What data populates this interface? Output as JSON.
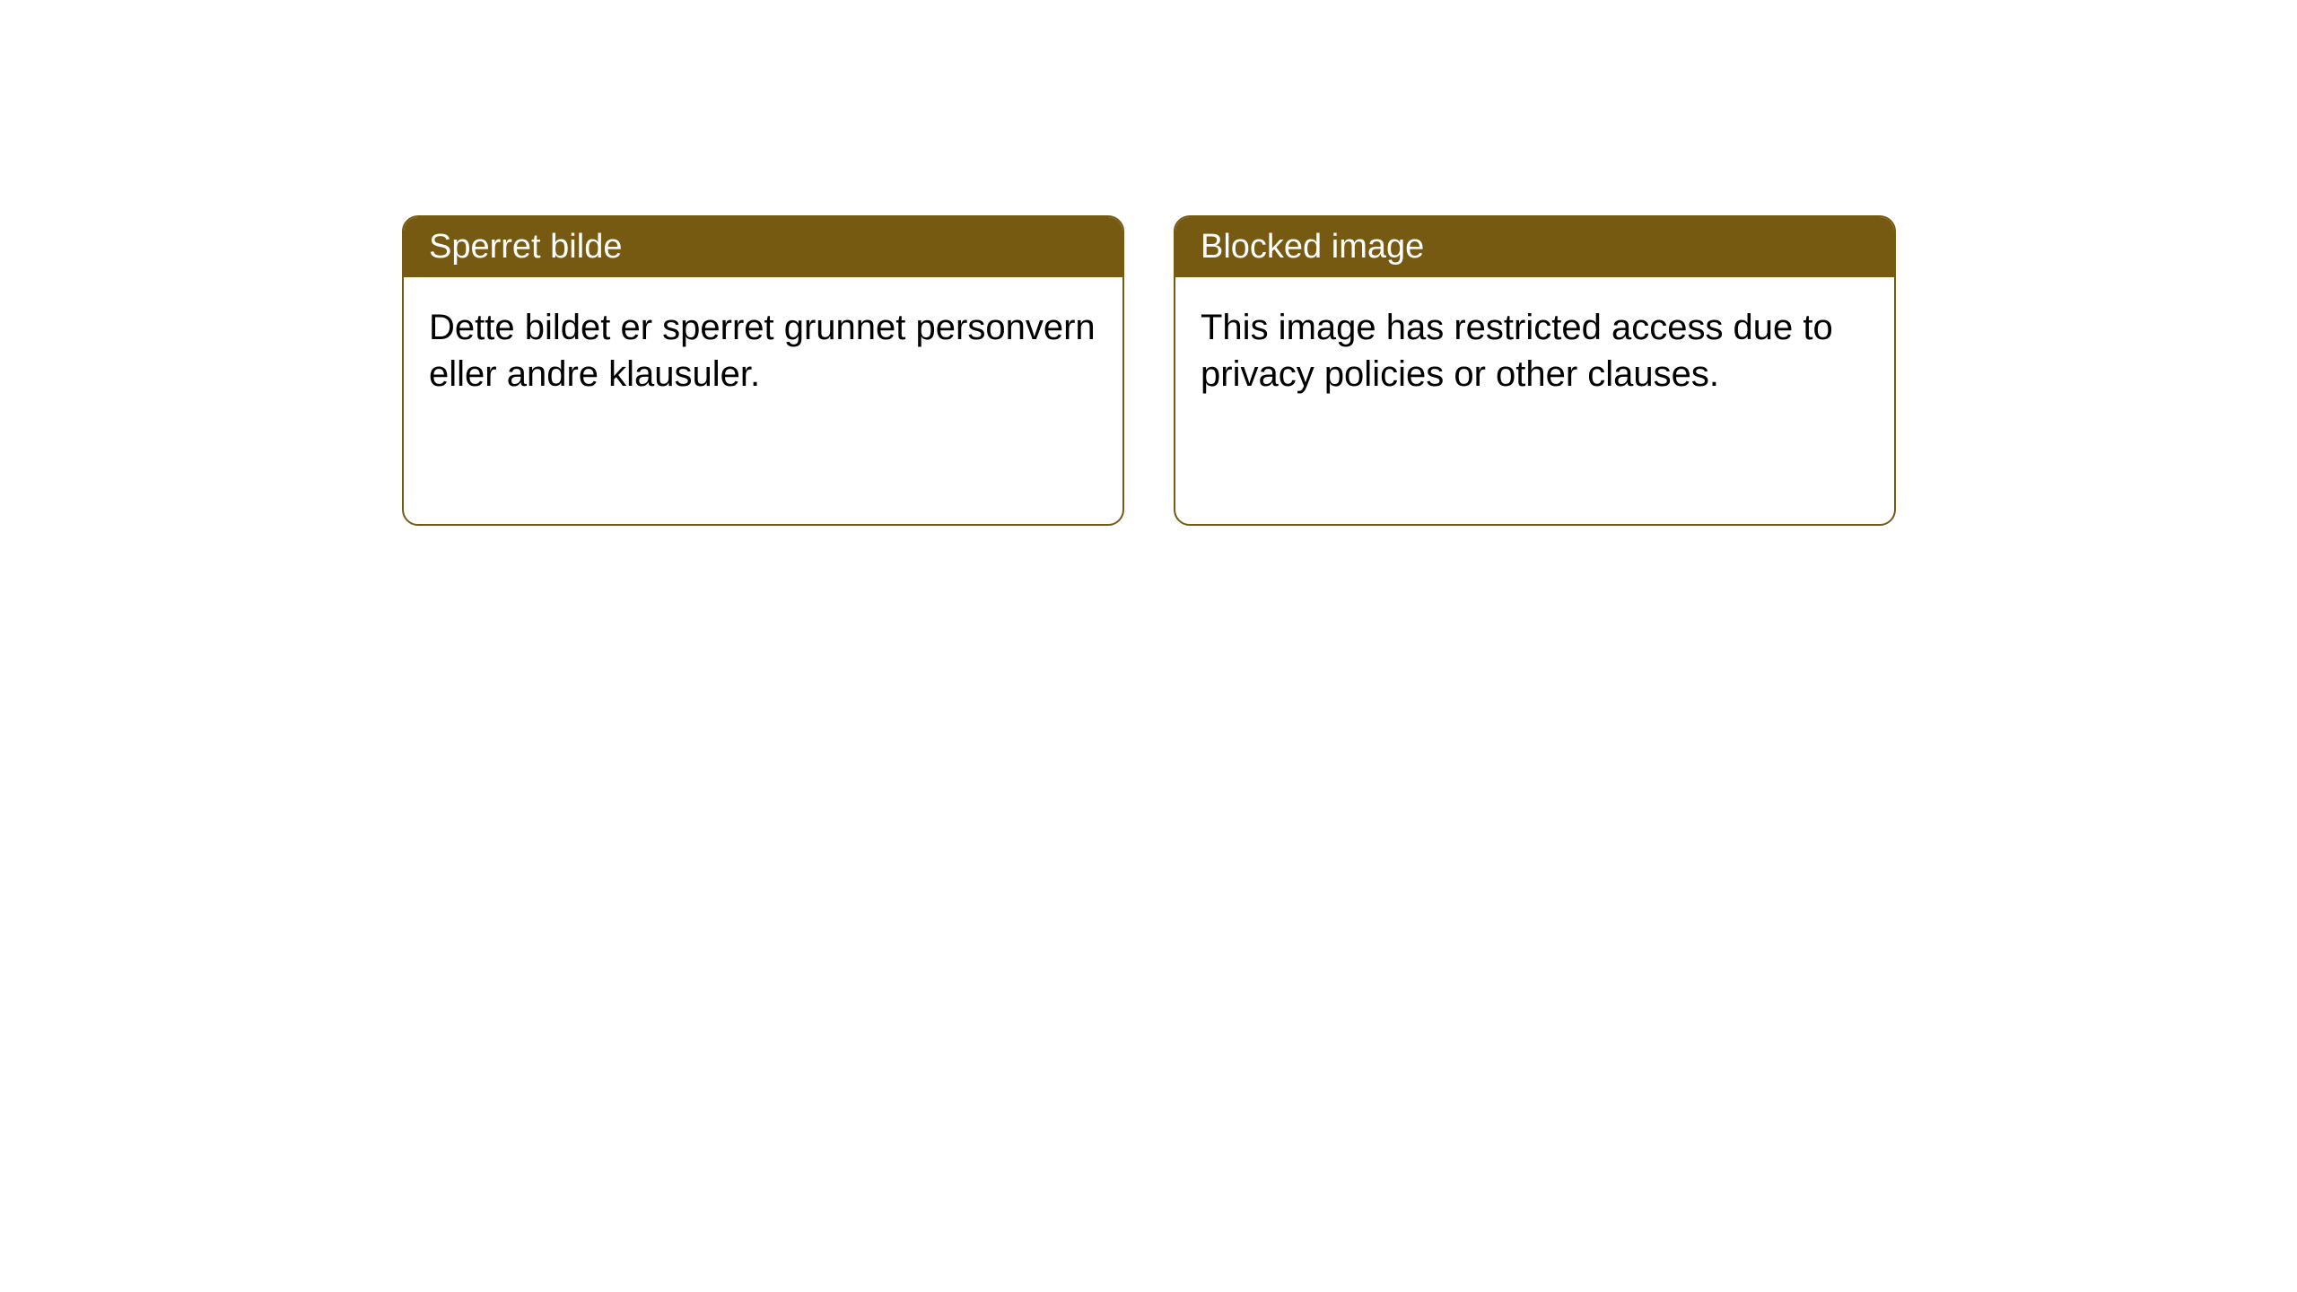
{
  "layout": {
    "background_color": "#ffffff",
    "card_border_color": "#775a12",
    "card_border_radius": 18,
    "header_bg_color": "#775a12",
    "header_text_color": "#ffffff",
    "body_text_color": "#000000",
    "header_fontsize": 38,
    "body_fontsize": 40
  },
  "cards": [
    {
      "title": "Sperret bilde",
      "body": "Dette bildet er sperret grunnet personvern eller andre klausuler."
    },
    {
      "title": "Blocked image",
      "body": "This image has restricted access due to privacy policies or other clauses."
    }
  ]
}
